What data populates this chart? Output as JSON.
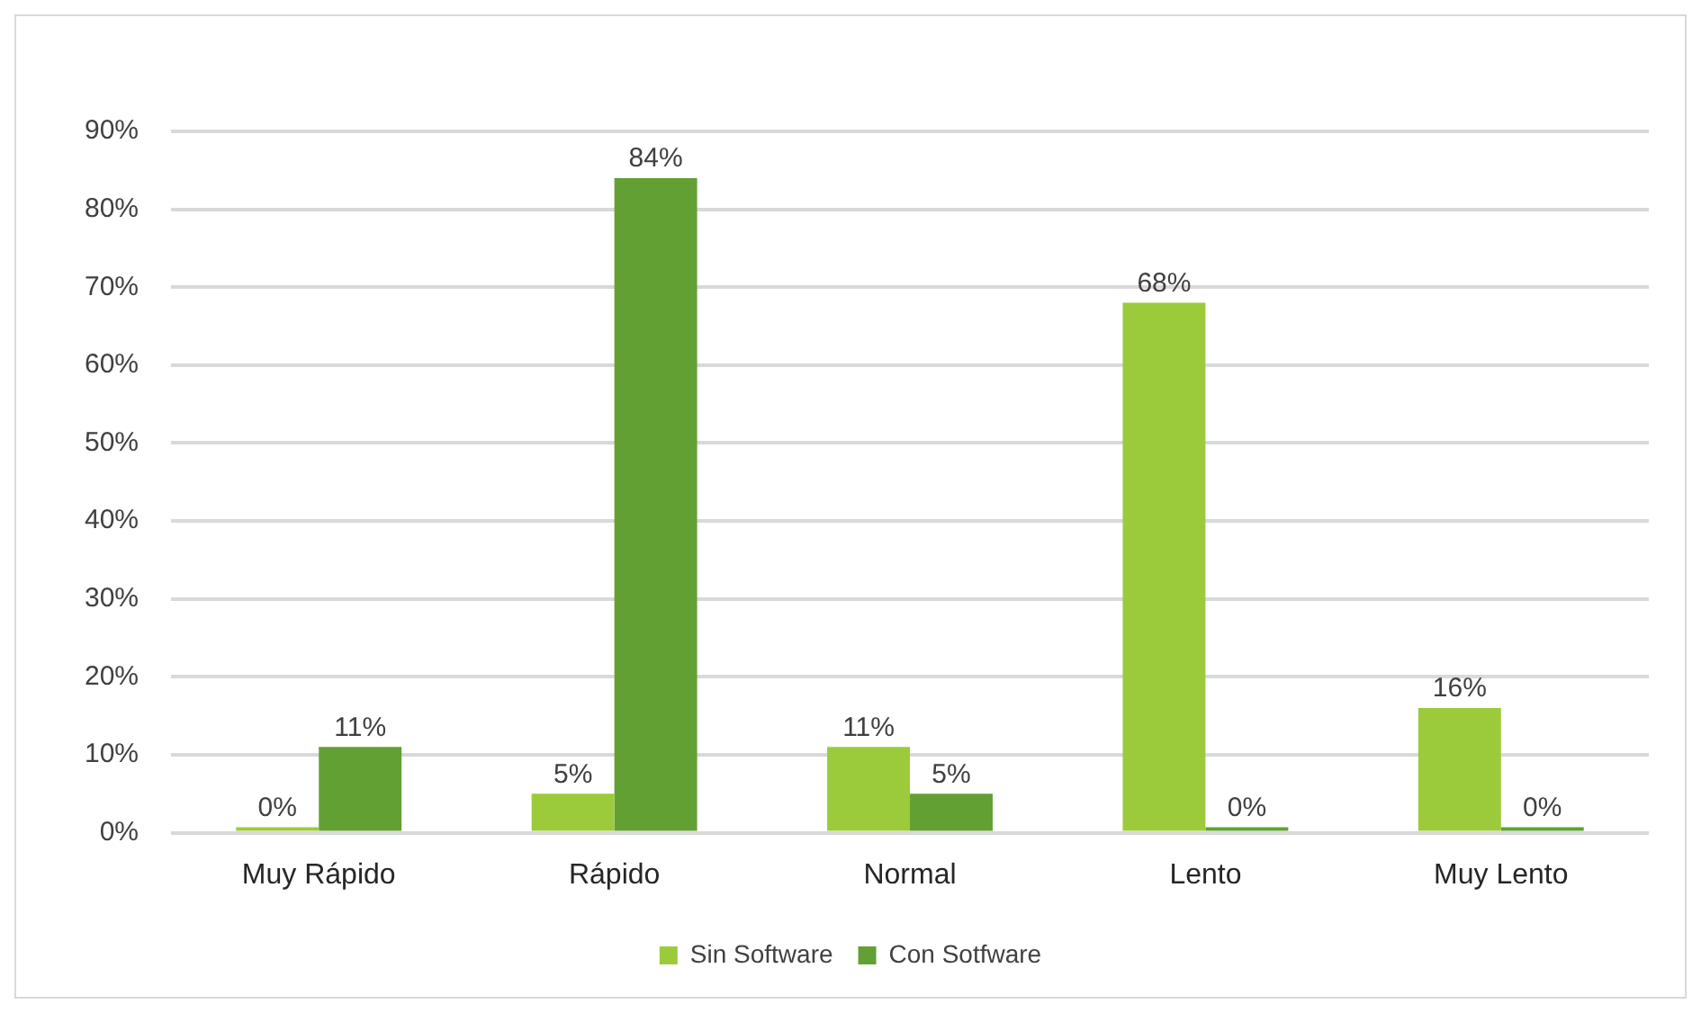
{
  "chart_data": {
    "type": "bar",
    "categories": [
      "Muy Rápido",
      "Rápido",
      "Normal",
      "Lento",
      "Muy Lento"
    ],
    "series": [
      {
        "name": "Sin Software",
        "color": "#9bcb3b",
        "values": [
          0,
          5,
          11,
          68,
          16
        ],
        "value_labels": [
          "0%",
          "5%",
          "11%",
          "68%",
          "16%"
        ]
      },
      {
        "name": "Con Sotfware",
        "color": "#62a034",
        "values": [
          11,
          84,
          5,
          0,
          0
        ],
        "value_labels": [
          "11%",
          "84%",
          "5%",
          "0%",
          "0%"
        ]
      }
    ],
    "ylim": [
      0,
      90
    ],
    "yticks": [
      {
        "value": 0,
        "label": "0%"
      },
      {
        "value": 10,
        "label": "10%"
      },
      {
        "value": 20,
        "label": "20%"
      },
      {
        "value": 30,
        "label": "30%"
      },
      {
        "value": 40,
        "label": "40%"
      },
      {
        "value": 50,
        "label": "50%"
      },
      {
        "value": 60,
        "label": "60%"
      },
      {
        "value": 70,
        "label": "70%"
      },
      {
        "value": 80,
        "label": "80%"
      },
      {
        "value": 90,
        "label": "90%"
      }
    ],
    "grid": "y",
    "legend": "bottom"
  }
}
